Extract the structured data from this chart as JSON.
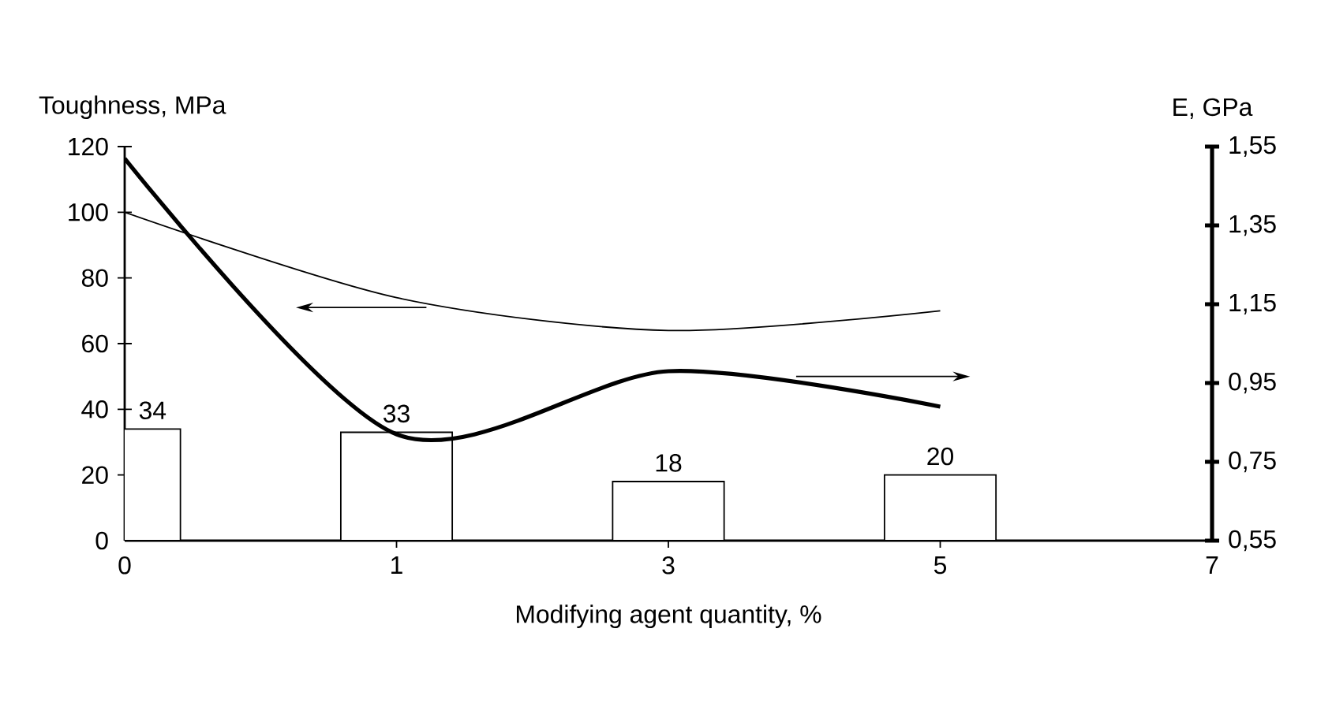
{
  "chart_data": {
    "type": "bar",
    "xlabel": "Modifying agent quantity, %",
    "ylabel": "Toughness, MPa",
    "y2label": "E, GPa",
    "categories": [
      "0",
      "1",
      "3",
      "5",
      "7"
    ],
    "ylim": [
      0,
      120
    ],
    "yticks": [
      0,
      20,
      40,
      60,
      80,
      100,
      120
    ],
    "y2lim": [
      0.55,
      1.55
    ],
    "y2ticks": [
      {
        "value": 0.55,
        "label": "0,55"
      },
      {
        "value": 0.75,
        "label": "0,75"
      },
      {
        "value": 0.95,
        "label": "0,95"
      },
      {
        "value": 1.15,
        "label": "1,15"
      },
      {
        "value": 1.35,
        "label": "1,35"
      },
      {
        "value": 1.55,
        "label": "1,55"
      }
    ],
    "grid": false,
    "series": [
      {
        "color": "#ffffff",
        "values": [
          34,
          33,
          18,
          20,
          null
        ],
        "value_labels": [
          "34",
          "33",
          "18",
          "20",
          null
        ]
      },
      {
        "type": "line",
        "color": "#000000",
        "values": [
          100,
          74,
          64,
          70,
          null
        ]
      },
      {
        "type": "line",
        "axis": "y2",
        "color": "#000000",
        "values": [
          1.52,
          0.82,
          0.98,
          0.89,
          null
        ]
      }
    ]
  }
}
